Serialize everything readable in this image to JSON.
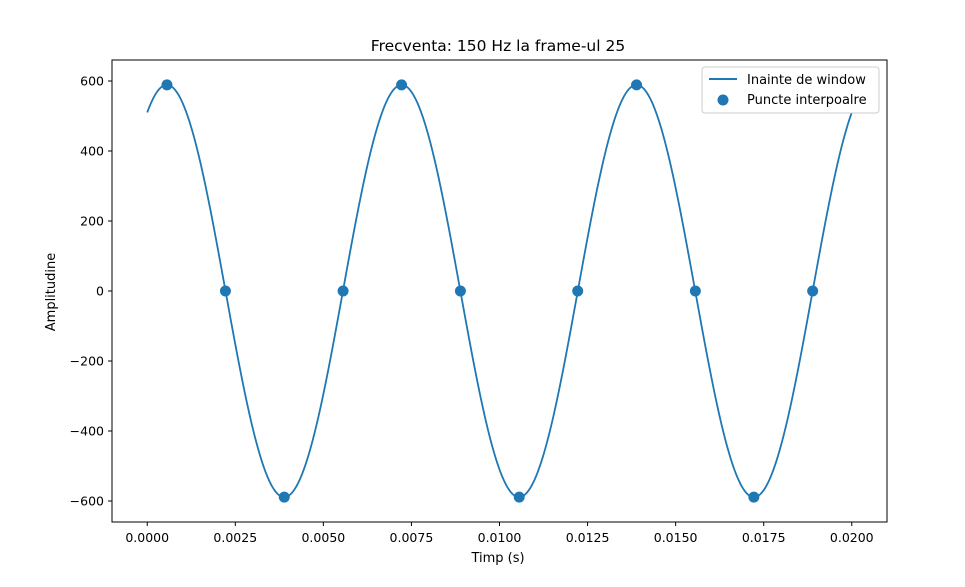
{
  "chart_data": {
    "type": "line",
    "title": "Frecventa: 150 Hz la frame-ul 25",
    "xlabel": "Timp (s)",
    "ylabel": "Amplitudine",
    "xlim": [
      -0.001,
      0.021
    ],
    "ylim": [
      -660,
      660
    ],
    "x_ticks": [
      0.0,
      0.0025,
      0.005,
      0.0075,
      0.01,
      0.0125,
      0.015,
      0.0175,
      0.02
    ],
    "x_tick_labels": [
      "0.0000",
      "0.0025",
      "0.0050",
      "0.0075",
      "0.0100",
      "0.0125",
      "0.0150",
      "0.0175",
      "0.0200"
    ],
    "y_ticks": [
      -600,
      -400,
      -200,
      0,
      200,
      400,
      600
    ],
    "y_tick_labels": [
      "−600",
      "−400",
      "−200",
      "0",
      "200",
      "400",
      "600"
    ],
    "grid": false,
    "legend_position": "top-right",
    "line_series": {
      "name": "Inainte de window",
      "color": "#1f77b4",
      "function": "sine",
      "amplitude": 589,
      "frequency_hz": 150,
      "phase_rad": 1.047,
      "x_range": [
        0.0,
        0.02
      ]
    },
    "scatter_series": {
      "name": "Puncte interpoalre",
      "color": "#1f77b4",
      "points": [
        {
          "x": 0.00056,
          "y": 589
        },
        {
          "x": 0.00222,
          "y": 0
        },
        {
          "x": 0.00389,
          "y": -589
        },
        {
          "x": 0.00556,
          "y": 0
        },
        {
          "x": 0.00722,
          "y": 589
        },
        {
          "x": 0.00889,
          "y": 0
        },
        {
          "x": 0.01056,
          "y": -589
        },
        {
          "x": 0.01222,
          "y": 0
        },
        {
          "x": 0.01389,
          "y": 589
        },
        {
          "x": 0.01556,
          "y": 0
        },
        {
          "x": 0.01722,
          "y": -589
        },
        {
          "x": 0.01889,
          "y": 0
        }
      ]
    }
  }
}
